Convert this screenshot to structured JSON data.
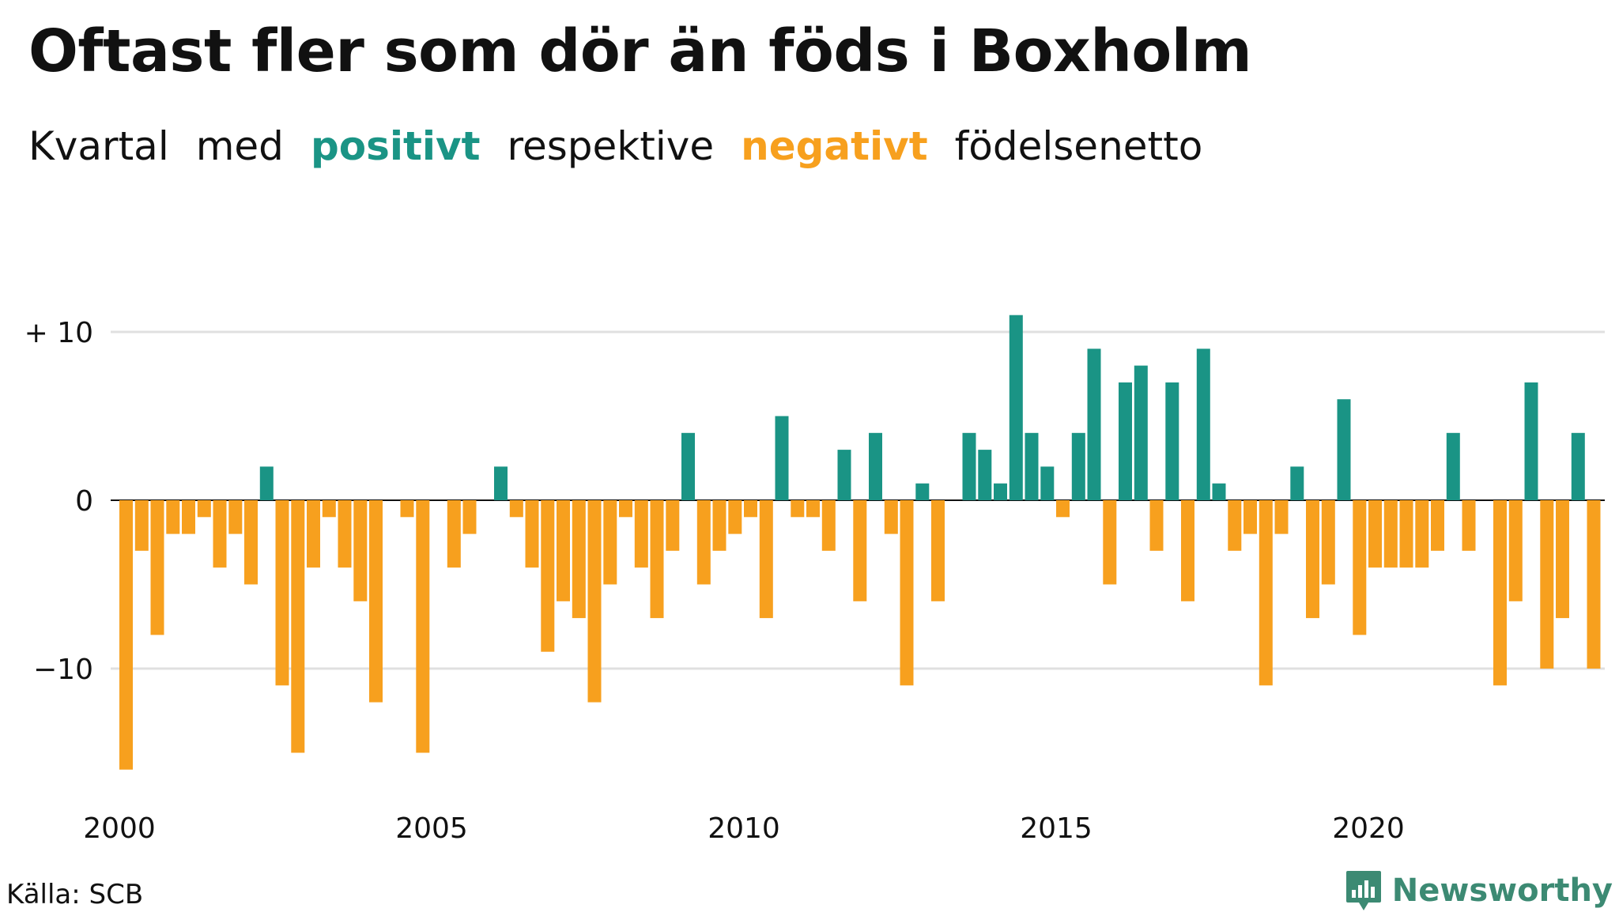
{
  "title": "Oftast fler som dör än föds i Boxholm",
  "subtitle": {
    "w1": "Kvartal",
    "w2": "med",
    "pos": "positivt",
    "w3": "respektive",
    "neg": "negativt",
    "w4": "födelsenetto"
  },
  "colors": {
    "positive": "#1a9485",
    "negative": "#f7a01e",
    "grid": "#e0e0e0"
  },
  "chart_data": {
    "type": "bar",
    "x_start": "2000 Q1",
    "x_ticks": [
      "2000",
      "2005",
      "2010",
      "2015",
      "2020"
    ],
    "y_ticks": [
      {
        "value": 10,
        "label": "+ 10"
      },
      {
        "value": 0,
        "label": "0"
      },
      {
        "value": -10,
        "label": "−10"
      }
    ],
    "ylim": [
      -17,
      11.5
    ],
    "grid": true,
    "values": [
      -16,
      -3,
      -8,
      -2,
      -2,
      -1,
      -4,
      -2,
      -5,
      2,
      -11,
      -15,
      -4,
      -1,
      -4,
      -6,
      -12,
      0,
      -1,
      -15,
      0,
      -4,
      -2,
      0,
      2,
      -1,
      -4,
      -9,
      -6,
      -7,
      -12,
      -5,
      -1,
      -4,
      -7,
      -3,
      4,
      -5,
      -3,
      -2,
      -1,
      -7,
      5,
      -1,
      -1,
      -3,
      3,
      -6,
      4,
      -2,
      -11,
      1,
      -6,
      0,
      4,
      3,
      1,
      11,
      4,
      2,
      -1,
      4,
      9,
      -5,
      7,
      8,
      -3,
      7,
      -6,
      9,
      1,
      -3,
      -2,
      -11,
      -2,
      2,
      -7,
      -5,
      6,
      -8,
      -4,
      -4,
      -4,
      -4,
      -3,
      4,
      -3,
      0,
      -11,
      -6,
      7,
      -10,
      -7,
      4,
      -10
    ]
  },
  "source": "Källa: SCB",
  "brand": {
    "name": "Newsworthy",
    "icon": "newsworthy-logo-icon"
  }
}
